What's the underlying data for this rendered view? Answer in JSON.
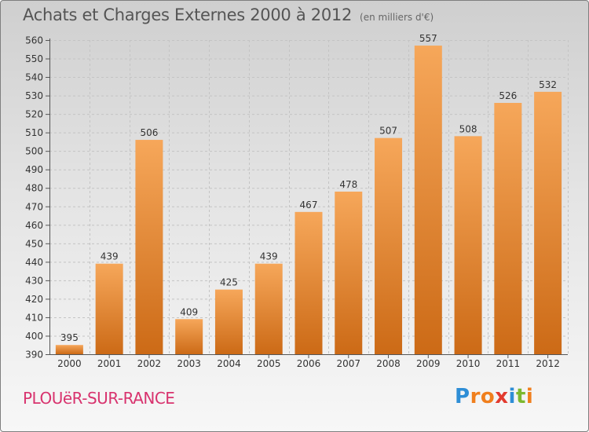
{
  "title": "Achats et Charges Externes 2000 à 2012",
  "unit_note": "(en milliers d'€)",
  "place_name": "PLOUëR-SUR-RANCE",
  "logo": {
    "letters": [
      "P",
      "r",
      "o",
      "x",
      "i",
      "t",
      "i"
    ],
    "colors": [
      "#2e8ed6",
      "#f07f1d",
      "#f07f1d",
      "#e23a2e",
      "#2e8ed6",
      "#7cb82f",
      "#f07f1d"
    ]
  },
  "colors": {
    "bar_light": "#f6a75a",
    "bar_dark": "#cc6a16",
    "axis": "#555555",
    "grid": "#c4c4c4",
    "label": "#333333"
  },
  "chart_data": {
    "type": "bar",
    "categories": [
      "2000",
      "2001",
      "2002",
      "2003",
      "2004",
      "2005",
      "2006",
      "2007",
      "2008",
      "2009",
      "2010",
      "2011",
      "2012"
    ],
    "values": [
      395,
      439,
      506,
      409,
      425,
      439,
      467,
      478,
      507,
      557,
      508,
      526,
      532
    ],
    "ylim": [
      390,
      560
    ],
    "yticks": [
      390,
      400,
      410,
      420,
      430,
      440,
      450,
      460,
      470,
      480,
      490,
      500,
      510,
      520,
      530,
      540,
      550,
      560
    ],
    "grid": true,
    "xlabel": "",
    "ylabel": ""
  }
}
